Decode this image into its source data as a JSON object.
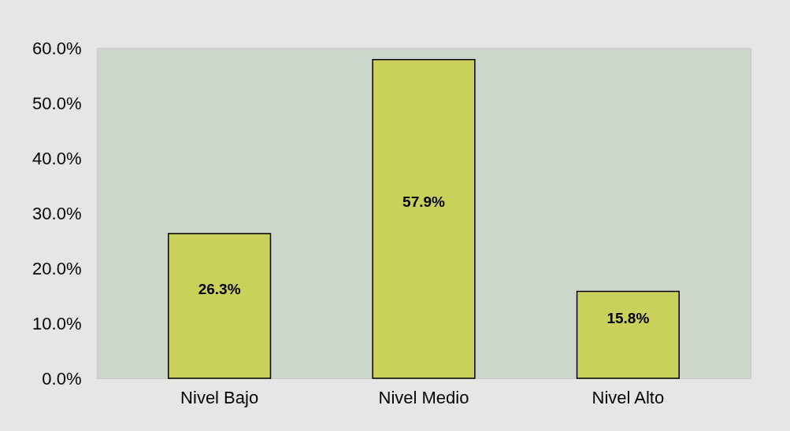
{
  "chart_data": {
    "type": "bar",
    "categories": [
      "Nivel Bajo",
      "Nivel Medio",
      "Nivel Alto"
    ],
    "values": [
      26.3,
      57.9,
      15.8
    ],
    "value_labels": [
      "26.3%",
      "57.9%",
      "15.8%"
    ],
    "color": "#c9d15a",
    "ylim": [
      0,
      60
    ],
    "yticks": [
      {
        "value": 0,
        "label": "0.0%"
      },
      {
        "value": 10,
        "label": "10.0%"
      },
      {
        "value": 20,
        "label": "20.0%"
      },
      {
        "value": 30,
        "label": "30.0%"
      },
      {
        "value": 40,
        "label": "40.0%"
      },
      {
        "value": 50,
        "label": "50.0%"
      },
      {
        "value": 60,
        "label": "60.0%"
      }
    ],
    "grid": false
  }
}
